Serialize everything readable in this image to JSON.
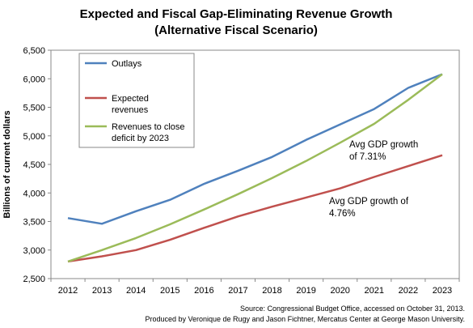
{
  "chart_data": {
    "type": "line",
    "title": [
      "Expected and Fiscal Gap-Eliminating  Revenue Growth",
      "(Alternative Fiscal Scenario)"
    ],
    "ylabel": "Billions of current dollars",
    "xlabel": "",
    "x": [
      2012,
      2013,
      2014,
      2015,
      2016,
      2017,
      2018,
      2019,
      2020,
      2021,
      2022,
      2023
    ],
    "ylim": [
      2500,
      6500
    ],
    "yticks": [
      2500,
      3000,
      3500,
      4000,
      4500,
      5000,
      5500,
      6000,
      6500
    ],
    "ytick_labels": [
      "2,500",
      "3,000",
      "3,500",
      "4,000",
      "4,500",
      "5,000",
      "5,500",
      "6,000",
      "6,500"
    ],
    "grid": false,
    "legend_position": "top-left",
    "series": [
      {
        "name": "Outlays",
        "color": "#4f81bd",
        "values": [
          3560,
          3460,
          3680,
          3880,
          4160,
          4390,
          4630,
          4930,
          5200,
          5470,
          5840,
          6080
        ]
      },
      {
        "name": "Expected revenues",
        "color": "#c0504d",
        "values": [
          2800,
          2890,
          3000,
          3180,
          3390,
          3590,
          3760,
          3920,
          4080,
          4280,
          4470,
          4660
        ]
      },
      {
        "name": "Revenues to close deficit by 2023",
        "color": "#9bbb59",
        "values": [
          2800,
          3000,
          3210,
          3450,
          3710,
          3980,
          4260,
          4560,
          4880,
          5210,
          5630,
          6080
        ]
      }
    ],
    "legend": [
      {
        "lines": [
          "Outlays"
        ],
        "color": "#4f81bd"
      },
      {
        "lines": [
          "Expected",
          "revenues"
        ],
        "color": "#c0504d"
      },
      {
        "lines": [
          "Revenues to close",
          "deficit by 2023"
        ],
        "color": "#9bbb59"
      }
    ],
    "annotations": [
      {
        "lines": [
          "Avg GDP growth",
          "of 7.31%"
        ]
      },
      {
        "lines": [
          "Avg GDP growth of",
          "4.76%"
        ]
      }
    ],
    "source": [
      "Source: Congressional Budget Office, accessed on October 31, 2013.",
      "Produced by Veronique de Rugy and Jason Fichtner, Mercatus Center at George Mason University."
    ]
  }
}
